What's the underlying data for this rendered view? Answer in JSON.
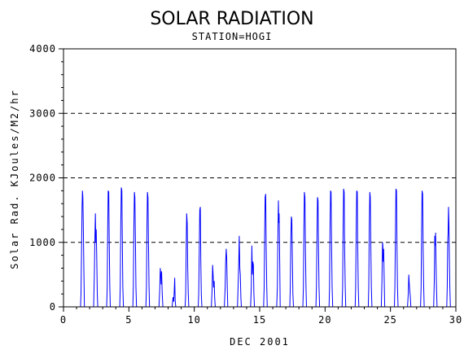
{
  "chart_data": {
    "type": "line",
    "title": "SOLAR RADIATION",
    "subtitle": "STATION=HOGI",
    "xlabel": "DEC 2001",
    "ylabel": "Solar Rad. KJoules/M2/hr",
    "xlim": [
      0,
      30
    ],
    "ylim": [
      0,
      4000
    ],
    "x_ticks": [
      0,
      5,
      10,
      15,
      20,
      25,
      30
    ],
    "y_ticks": [
      0,
      1000,
      2000,
      3000,
      4000
    ],
    "grid_y": [
      1000,
      2000,
      3000,
      4000
    ],
    "line_color": "#0000ff",
    "daily_peaks": [
      {
        "day": 1,
        "profile": [
          [
            0.3,
            0
          ],
          [
            0.34,
            200
          ],
          [
            0.38,
            900
          ],
          [
            0.42,
            1550
          ],
          [
            0.45,
            1800
          ],
          [
            0.48,
            1700
          ],
          [
            0.52,
            1200
          ],
          [
            0.56,
            500
          ],
          [
            0.6,
            0
          ]
        ]
      },
      {
        "day": 2,
        "profile": [
          [
            0.3,
            0
          ],
          [
            0.36,
            500
          ],
          [
            0.4,
            1100
          ],
          [
            0.44,
            1450
          ],
          [
            0.47,
            1000
          ],
          [
            0.5,
            1200
          ],
          [
            0.54,
            800
          ],
          [
            0.58,
            200
          ],
          [
            0.62,
            0
          ]
        ]
      },
      {
        "day": 3,
        "profile": [
          [
            0.3,
            0
          ],
          [
            0.34,
            300
          ],
          [
            0.38,
            1200
          ],
          [
            0.42,
            1800
          ],
          [
            0.46,
            1780
          ],
          [
            0.5,
            1000
          ],
          [
            0.54,
            300
          ],
          [
            0.58,
            0
          ]
        ]
      },
      {
        "day": 4,
        "profile": [
          [
            0.3,
            0
          ],
          [
            0.34,
            300
          ],
          [
            0.38,
            1300
          ],
          [
            0.42,
            1850
          ],
          [
            0.46,
            1800
          ],
          [
            0.5,
            1000
          ],
          [
            0.54,
            300
          ],
          [
            0.58,
            0
          ]
        ]
      },
      {
        "day": 5,
        "profile": [
          [
            0.3,
            0
          ],
          [
            0.34,
            300
          ],
          [
            0.38,
            1200
          ],
          [
            0.42,
            1780
          ],
          [
            0.46,
            1700
          ],
          [
            0.5,
            1000
          ],
          [
            0.54,
            300
          ],
          [
            0.58,
            0
          ]
        ]
      },
      {
        "day": 6,
        "profile": [
          [
            0.3,
            0
          ],
          [
            0.34,
            300
          ],
          [
            0.38,
            1200
          ],
          [
            0.42,
            1780
          ],
          [
            0.46,
            1700
          ],
          [
            0.5,
            1000
          ],
          [
            0.54,
            300
          ],
          [
            0.58,
            0
          ]
        ]
      },
      {
        "day": 7,
        "profile": [
          [
            0.3,
            0
          ],
          [
            0.36,
            300
          ],
          [
            0.4,
            600
          ],
          [
            0.44,
            500
          ],
          [
            0.47,
            350
          ],
          [
            0.5,
            550
          ],
          [
            0.55,
            200
          ],
          [
            0.6,
            0
          ]
        ]
      },
      {
        "day": 8,
        "profile": [
          [
            0.3,
            0
          ],
          [
            0.38,
            150
          ],
          [
            0.42,
            80
          ],
          [
            0.46,
            200
          ],
          [
            0.5,
            450
          ],
          [
            0.54,
            100
          ],
          [
            0.58,
            0
          ]
        ]
      },
      {
        "day": 9,
        "profile": [
          [
            0.3,
            0
          ],
          [
            0.34,
            200
          ],
          [
            0.38,
            900
          ],
          [
            0.42,
            1450
          ],
          [
            0.46,
            1300
          ],
          [
            0.5,
            600
          ],
          [
            0.54,
            200
          ],
          [
            0.58,
            0
          ]
        ]
      },
      {
        "day": 10,
        "profile": [
          [
            0.3,
            0
          ],
          [
            0.34,
            200
          ],
          [
            0.38,
            900
          ],
          [
            0.42,
            1500
          ],
          [
            0.46,
            1550
          ],
          [
            0.5,
            700
          ],
          [
            0.54,
            200
          ],
          [
            0.58,
            0
          ]
        ]
      },
      {
        "day": 11,
        "profile": [
          [
            0.3,
            0
          ],
          [
            0.36,
            250
          ],
          [
            0.4,
            650
          ],
          [
            0.44,
            500
          ],
          [
            0.48,
            300
          ],
          [
            0.52,
            400
          ],
          [
            0.56,
            150
          ],
          [
            0.6,
            0
          ]
        ]
      },
      {
        "day": 12,
        "profile": [
          [
            0.3,
            0
          ],
          [
            0.36,
            300
          ],
          [
            0.4,
            700
          ],
          [
            0.44,
            900
          ],
          [
            0.48,
            750
          ],
          [
            0.52,
            300
          ],
          [
            0.56,
            0
          ]
        ]
      },
      {
        "day": 13,
        "profile": [
          [
            0.3,
            0
          ],
          [
            0.36,
            400
          ],
          [
            0.4,
            700
          ],
          [
            0.44,
            1100
          ],
          [
            0.48,
            600
          ],
          [
            0.52,
            500
          ],
          [
            0.56,
            150
          ],
          [
            0.6,
            0
          ]
        ]
      },
      {
        "day": 14,
        "profile": [
          [
            0.3,
            0
          ],
          [
            0.36,
            300
          ],
          [
            0.4,
            950
          ],
          [
            0.44,
            500
          ],
          [
            0.48,
            700
          ],
          [
            0.52,
            650
          ],
          [
            0.56,
            200
          ],
          [
            0.6,
            0
          ]
        ]
      },
      {
        "day": 15,
        "profile": [
          [
            0.3,
            0
          ],
          [
            0.34,
            300
          ],
          [
            0.38,
            1100
          ],
          [
            0.42,
            1700
          ],
          [
            0.46,
            1750
          ],
          [
            0.5,
            900
          ],
          [
            0.54,
            300
          ],
          [
            0.58,
            0
          ]
        ]
      },
      {
        "day": 16,
        "profile": [
          [
            0.3,
            0
          ],
          [
            0.35,
            300
          ],
          [
            0.39,
            1000
          ],
          [
            0.43,
            1650
          ],
          [
            0.46,
            1300
          ],
          [
            0.49,
            1450
          ],
          [
            0.53,
            700
          ],
          [
            0.57,
            0
          ]
        ]
      },
      {
        "day": 17,
        "profile": [
          [
            0.3,
            0
          ],
          [
            0.34,
            300
          ],
          [
            0.38,
            1000
          ],
          [
            0.42,
            1400
          ],
          [
            0.46,
            1350
          ],
          [
            0.5,
            700
          ],
          [
            0.54,
            200
          ],
          [
            0.58,
            0
          ]
        ]
      },
      {
        "day": 18,
        "profile": [
          [
            0.3,
            0
          ],
          [
            0.34,
            300
          ],
          [
            0.38,
            1200
          ],
          [
            0.42,
            1780
          ],
          [
            0.46,
            1700
          ],
          [
            0.5,
            900
          ],
          [
            0.54,
            300
          ],
          [
            0.58,
            0
          ]
        ]
      },
      {
        "day": 19,
        "profile": [
          [
            0.3,
            0
          ],
          [
            0.34,
            300
          ],
          [
            0.38,
            1100
          ],
          [
            0.42,
            1700
          ],
          [
            0.46,
            1650
          ],
          [
            0.5,
            900
          ],
          [
            0.54,
            300
          ],
          [
            0.58,
            0
          ]
        ]
      },
      {
        "day": 20,
        "profile": [
          [
            0.3,
            0
          ],
          [
            0.34,
            300
          ],
          [
            0.38,
            1200
          ],
          [
            0.42,
            1800
          ],
          [
            0.46,
            1780
          ],
          [
            0.5,
            900
          ],
          [
            0.54,
            300
          ],
          [
            0.58,
            0
          ]
        ]
      },
      {
        "day": 21,
        "profile": [
          [
            0.3,
            0
          ],
          [
            0.34,
            300
          ],
          [
            0.38,
            1200
          ],
          [
            0.42,
            1830
          ],
          [
            0.46,
            1780
          ],
          [
            0.5,
            900
          ],
          [
            0.54,
            300
          ],
          [
            0.58,
            0
          ]
        ]
      },
      {
        "day": 22,
        "profile": [
          [
            0.3,
            0
          ],
          [
            0.34,
            300
          ],
          [
            0.38,
            1200
          ],
          [
            0.42,
            1800
          ],
          [
            0.46,
            1780
          ],
          [
            0.5,
            900
          ],
          [
            0.54,
            300
          ],
          [
            0.58,
            0
          ]
        ]
      },
      {
        "day": 23,
        "profile": [
          [
            0.3,
            0
          ],
          [
            0.34,
            300
          ],
          [
            0.38,
            1200
          ],
          [
            0.42,
            1780
          ],
          [
            0.46,
            1700
          ],
          [
            0.5,
            900
          ],
          [
            0.54,
            300
          ],
          [
            0.58,
            0
          ]
        ]
      },
      {
        "day": 24,
        "profile": [
          [
            0.3,
            0
          ],
          [
            0.35,
            400
          ],
          [
            0.39,
            1000
          ],
          [
            0.42,
            950
          ],
          [
            0.45,
            700
          ],
          [
            0.48,
            900
          ],
          [
            0.52,
            400
          ],
          [
            0.56,
            0
          ]
        ]
      },
      {
        "day": 25,
        "profile": [
          [
            0.3,
            0
          ],
          [
            0.34,
            300
          ],
          [
            0.38,
            1200
          ],
          [
            0.42,
            1830
          ],
          [
            0.46,
            1800
          ],
          [
            0.5,
            900
          ],
          [
            0.54,
            300
          ],
          [
            0.58,
            0
          ]
        ]
      },
      {
        "day": 26,
        "profile": [
          [
            0.3,
            0
          ],
          [
            0.36,
            200
          ],
          [
            0.4,
            500
          ],
          [
            0.44,
            350
          ],
          [
            0.48,
            250
          ],
          [
            0.52,
            150
          ],
          [
            0.56,
            0
          ]
        ]
      },
      {
        "day": 27,
        "profile": [
          [
            0.3,
            0
          ],
          [
            0.34,
            300
          ],
          [
            0.38,
            1200
          ],
          [
            0.42,
            1800
          ],
          [
            0.46,
            1750
          ],
          [
            0.5,
            900
          ],
          [
            0.54,
            300
          ],
          [
            0.58,
            0
          ]
        ]
      },
      {
        "day": 28,
        "profile": [
          [
            0.3,
            0
          ],
          [
            0.35,
            400
          ],
          [
            0.39,
            1100
          ],
          [
            0.42,
            950
          ],
          [
            0.45,
            1150
          ],
          [
            0.48,
            700
          ],
          [
            0.52,
            300
          ],
          [
            0.56,
            0
          ]
        ]
      },
      {
        "day": 29,
        "profile": [
          [
            0.3,
            0
          ],
          [
            0.34,
            300
          ],
          [
            0.38,
            1000
          ],
          [
            0.41,
            1150
          ],
          [
            0.44,
            1550
          ],
          [
            0.47,
            1300
          ],
          [
            0.5,
            800
          ],
          [
            0.54,
            300
          ],
          [
            0.58,
            0
          ]
        ]
      }
    ]
  }
}
